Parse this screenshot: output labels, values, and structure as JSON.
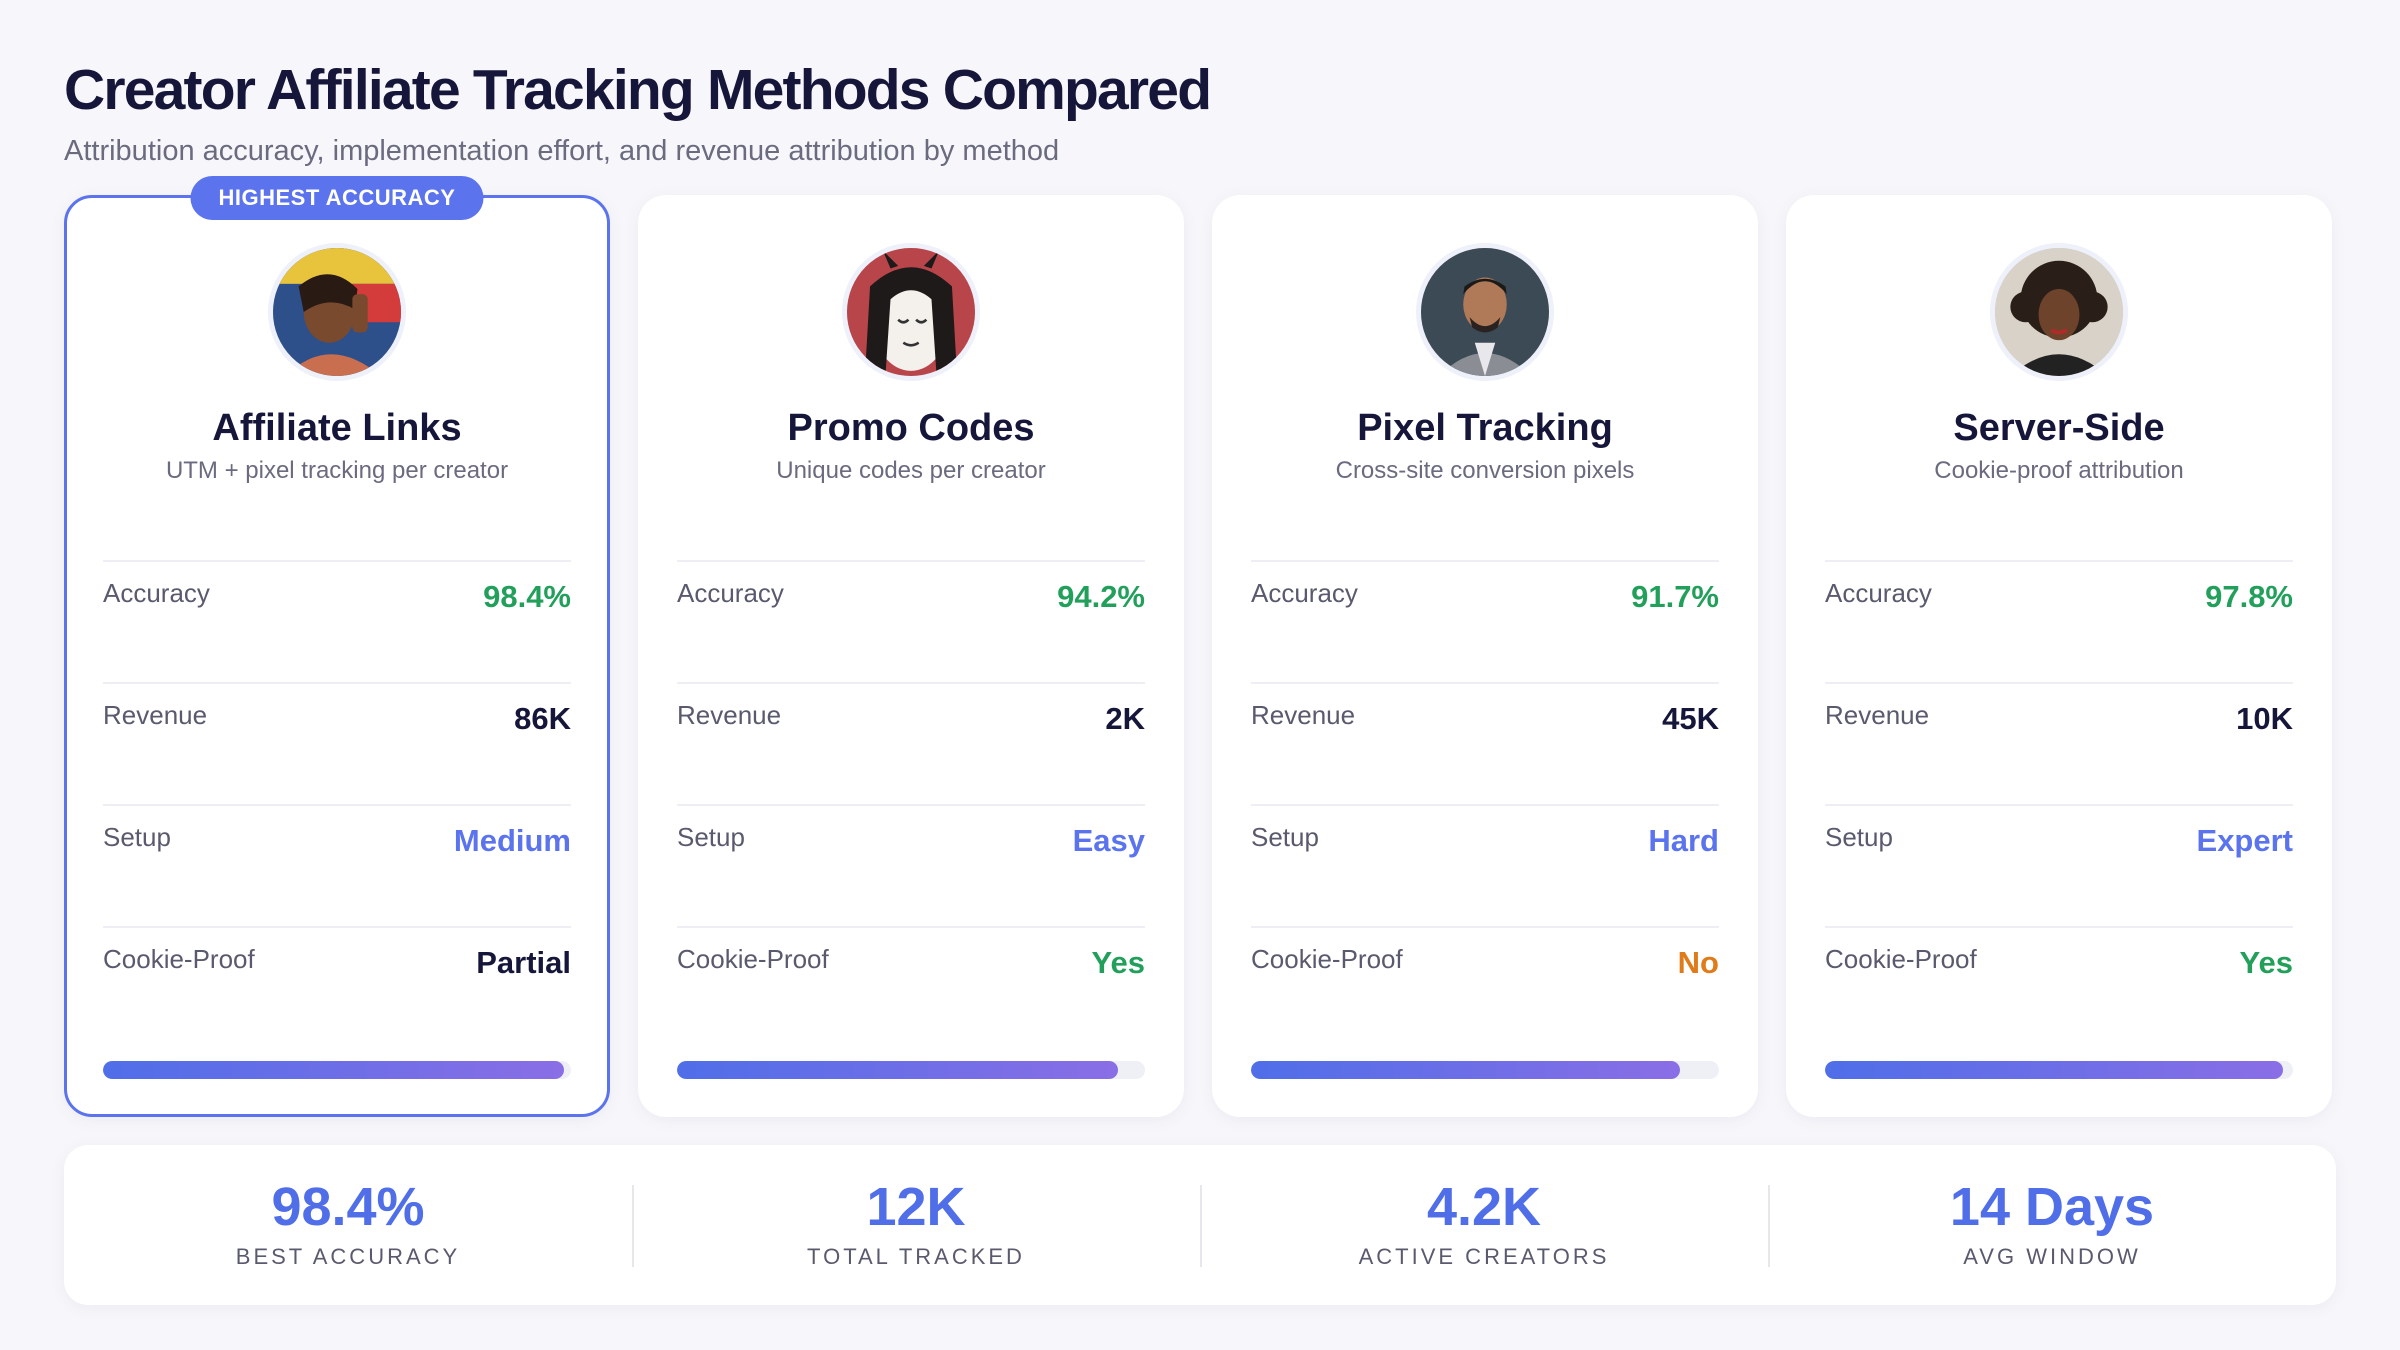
{
  "header": {
    "title": "Creator Affiliate Tracking Methods Compared",
    "subtitle": "Attribution accuracy, implementation effort, and revenue attribution by method"
  },
  "colors": {
    "accent": "#5b74ee",
    "green": "#22a05b",
    "orange": "#e07b1a",
    "dark": "#16163a"
  },
  "cards": [
    {
      "name": "Affiliate Links",
      "description": "UTM + pixel tracking per creator",
      "featured": true,
      "badge": "HIGHEST ACCURACY",
      "accuracy": "98.4%",
      "revenue": "86K",
      "setup": "Medium",
      "cookie_proof": "Partial",
      "cookie_color": "dark",
      "bar_fraction": 0.984
    },
    {
      "name": "Promo Codes",
      "description": "Unique codes per creator",
      "featured": false,
      "accuracy": "94.2%",
      "revenue": "2K",
      "setup": "Easy",
      "cookie_proof": "Yes",
      "cookie_color": "green",
      "bar_fraction": 0.942
    },
    {
      "name": "Pixel Tracking",
      "description": "Cross-site conversion pixels",
      "featured": false,
      "accuracy": "91.7%",
      "revenue": "45K",
      "setup": "Hard",
      "cookie_proof": "No",
      "cookie_color": "orange",
      "bar_fraction": 0.917
    },
    {
      "name": "Server-Side",
      "description": "Cookie-proof attribution",
      "featured": false,
      "accuracy": "97.8%",
      "revenue": "10K",
      "setup": "Expert",
      "cookie_proof": "Yes",
      "cookie_color": "green",
      "bar_fraction": 0.978
    }
  ],
  "row_labels": {
    "accuracy": "Accuracy",
    "revenue": "Revenue",
    "setup": "Setup",
    "cookie_proof": "Cookie-Proof"
  },
  "stats": [
    {
      "value": "98.4%",
      "label": "BEST ACCURACY"
    },
    {
      "value": "12K",
      "label": "TOTAL TRACKED"
    },
    {
      "value": "4.2K",
      "label": "ACTIVE CREATORS"
    },
    {
      "value": "14 Days",
      "label": "AVG WINDOW"
    }
  ]
}
